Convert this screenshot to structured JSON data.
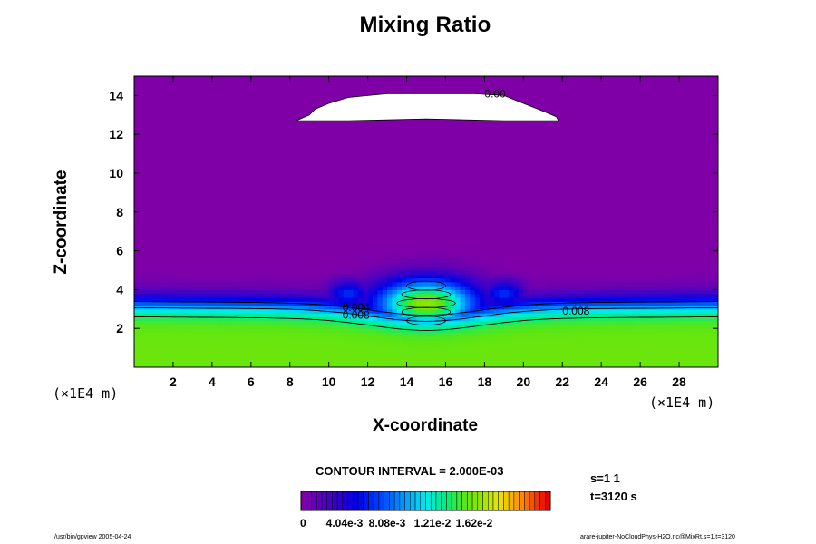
{
  "chart_data": {
    "type": "heatmap",
    "title": "Mixing Ratio",
    "xlabel": "X-coordinate",
    "ylabel": "Z-coordinate",
    "x_unit": "(×1E4 m)",
    "y_unit": "(×1E4 m)",
    "xlim": [
      0,
      30
    ],
    "ylim": [
      0,
      15
    ],
    "x_ticks": [
      2,
      4,
      6,
      8,
      10,
      12,
      14,
      16,
      18,
      20,
      22,
      24,
      26,
      28
    ],
    "y_ticks": [
      2,
      4,
      6,
      8,
      10,
      12,
      14
    ],
    "contour_interval": "CONTOUR INTERVAL = 2.000E-03",
    "contour_labels": [
      {
        "text": "0.00",
        "x": 18.0,
        "z": 13.9
      },
      {
        "text": "0.004",
        "x": 10.7,
        "z": 2.9
      },
      {
        "text": "0.008",
        "x": 10.7,
        "z": 2.5
      },
      {
        "text": "0.008",
        "x": 22.0,
        "z": 2.7
      }
    ],
    "colorbar": {
      "range": [
        0,
        0.02
      ],
      "tick_labels": [
        "0",
        "4.04e-3",
        "8.08e-3",
        "1.21e-2",
        "1.62e-2"
      ]
    },
    "meta": {
      "s": "s=1 1",
      "t": "t=3120 s"
    },
    "footer_left": "/usr/bin/gpview 2005-04-24",
    "footer_right": "arare-jupiter-NoCloudPhys-H2O.nc@MixRt,s=1,t=3120"
  },
  "colors": {
    "background_purple": "#7b00a8",
    "high_green": "#6ae017"
  }
}
